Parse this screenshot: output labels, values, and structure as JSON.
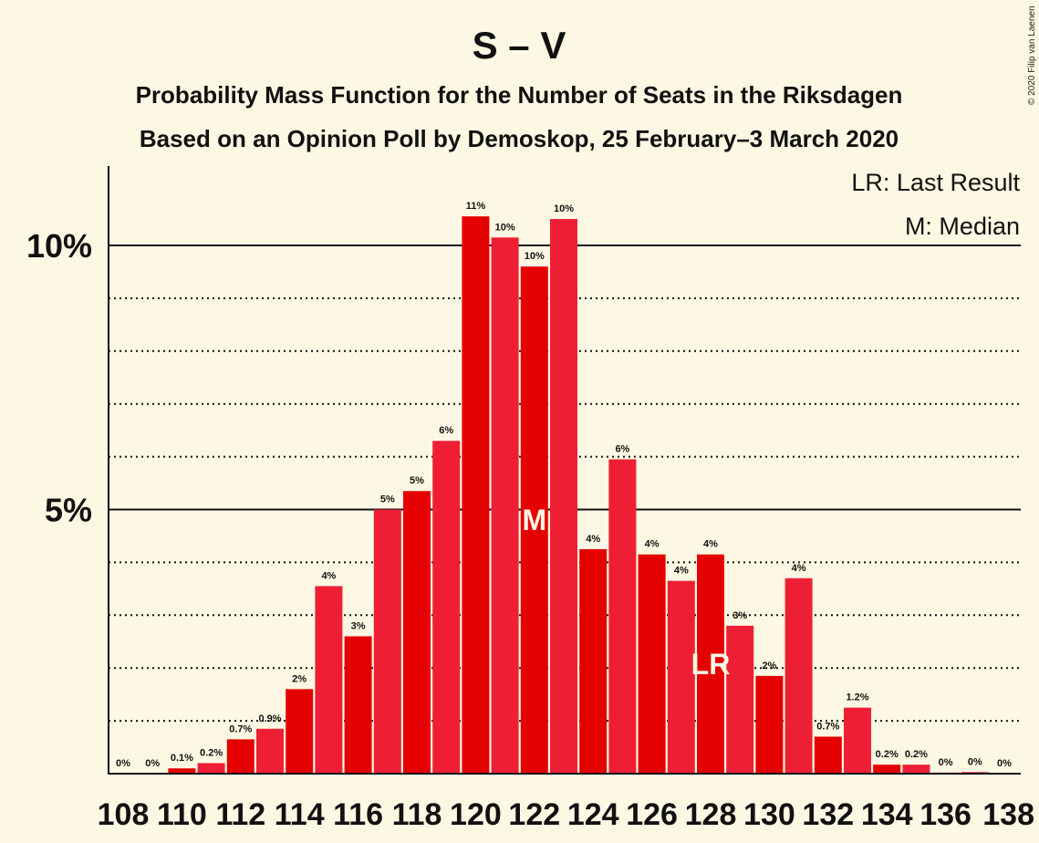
{
  "chart_data": {
    "type": "bar",
    "title": "S – V",
    "subtitle": "Probability Mass Function for the Number of Seats in the Riksdagen",
    "subtitle2": "Based on an Opinion Poll by Demoskop, 25 February–3 March 2020",
    "legend": [
      "LR: Last Result",
      "M: Median"
    ],
    "copyright": "© 2020 Filip van Laenen",
    "y_ticks": [
      {
        "value": 5,
        "label": "5%"
      },
      {
        "value": 10,
        "label": "10%"
      }
    ],
    "ylim": [
      0,
      11.5
    ],
    "x_tick_labels": [
      "108",
      "110",
      "112",
      "114",
      "116",
      "118",
      "120",
      "122",
      "124",
      "126",
      "128",
      "130",
      "132",
      "134",
      "136",
      "138"
    ],
    "categories": [
      108,
      109,
      110,
      111,
      112,
      113,
      114,
      115,
      116,
      117,
      118,
      119,
      120,
      121,
      122,
      123,
      124,
      125,
      126,
      127,
      128,
      129,
      130,
      131,
      132,
      133,
      134,
      135,
      136,
      137,
      138
    ],
    "values": [
      0,
      0,
      0.1,
      0.2,
      0.65,
      0.85,
      1.6,
      3.55,
      2.6,
      5.0,
      5.35,
      6.3,
      10.55,
      10.15,
      9.6,
      10.5,
      4.25,
      5.95,
      4.15,
      3.65,
      4.15,
      2.8,
      1.85,
      3.7,
      0.7,
      1.25,
      0.17,
      0.17,
      0.02,
      0.03,
      0
    ],
    "labels": [
      "0%",
      "0%",
      "0.1%",
      "0.2%",
      "0.7%",
      "0.9%",
      "2%",
      "4%",
      "3%",
      "5%",
      "5%",
      "6%",
      "11%",
      "10%",
      "10%",
      "10%",
      "4%",
      "6%",
      "4%",
      "4%",
      "4%",
      "3%",
      "2%",
      "4%",
      "0.7%",
      "1.2%",
      "0.2%",
      "0.2%",
      "0%",
      "0%",
      "0%"
    ],
    "median_seat": 122,
    "median_marker": "M",
    "last_result_seat": 128,
    "last_result_marker": "LR",
    "colors": {
      "bar_a": "#e50000",
      "bar_b": "#ee1f35",
      "background": "#fdf8e3"
    }
  }
}
